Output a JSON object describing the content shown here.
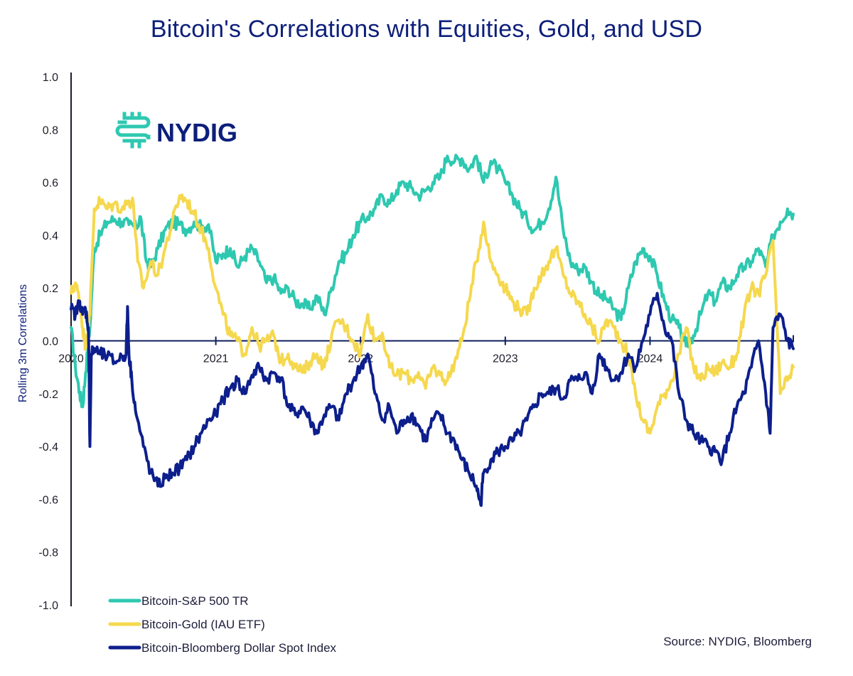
{
  "chart_data": {
    "type": "line",
    "title": "Bitcoin's Correlations with Equities, Gold, and USD",
    "xlabel": "",
    "ylabel": "Rolling 3m Correlations",
    "ylim": [
      -1.0,
      1.0
    ],
    "xlim": [
      2020.0,
      2024.99
    ],
    "yticks": [
      "1.0",
      "0.8",
      "0.6",
      "0.4",
      "0.2",
      "0.0",
      "-0.2",
      "-0.4",
      "-0.6",
      "-0.8",
      "-1.0"
    ],
    "ytick_values": [
      1.0,
      0.8,
      0.6,
      0.4,
      0.2,
      0.0,
      -0.2,
      -0.4,
      -0.6,
      -0.8,
      -1.0
    ],
    "xticks": [
      "2020",
      "2021",
      "2022",
      "2023",
      "2024"
    ],
    "xtick_values": [
      2020,
      2021,
      2022,
      2023,
      2024
    ],
    "grid": false,
    "legend_position": "bottom-left",
    "source": "Source: NYDIG, Bloomberg",
    "logo": "NYDIG",
    "series": [
      {
        "name": "Bitcoin-S&P 500 TR",
        "color": "#2ec8b0",
        "x": [
          2020.0,
          2020.03,
          2020.06,
          2020.08,
          2020.1,
          2020.13,
          2020.16,
          2020.2,
          2020.25,
          2020.3,
          2020.35,
          2020.4,
          2020.45,
          2020.48,
          2020.52,
          2020.55,
          2020.6,
          2020.65,
          2020.7,
          2020.75,
          2020.8,
          2020.85,
          2020.9,
          2020.95,
          2021.0,
          2021.05,
          2021.1,
          2021.15,
          2021.2,
          2021.25,
          2021.3,
          2021.35,
          2021.4,
          2021.45,
          2021.5,
          2021.55,
          2021.6,
          2021.65,
          2021.7,
          2021.75,
          2021.8,
          2021.85,
          2021.9,
          2021.95,
          2022.0,
          2022.05,
          2022.1,
          2022.15,
          2022.2,
          2022.25,
          2022.3,
          2022.35,
          2022.4,
          2022.45,
          2022.5,
          2022.55,
          2022.6,
          2022.65,
          2022.7,
          2022.75,
          2022.8,
          2022.85,
          2022.9,
          2022.95,
          2023.0,
          2023.05,
          2023.1,
          2023.15,
          2023.2,
          2023.25,
          2023.3,
          2023.35,
          2023.4,
          2023.45,
          2023.5,
          2023.55,
          2023.6,
          2023.65,
          2023.7,
          2023.75,
          2023.8,
          2023.85,
          2023.9,
          2023.95,
          2024.0,
          2024.05,
          2024.1,
          2024.15,
          2024.2,
          2024.25,
          2024.3,
          2024.35,
          2024.4,
          2024.45,
          2024.5,
          2024.55,
          2024.6,
          2024.65,
          2024.7,
          2024.75,
          2024.8,
          2024.85,
          2024.9,
          2024.95,
          2024.99
        ],
        "values": [
          0.05,
          -0.1,
          -0.2,
          -0.25,
          -0.12,
          0.05,
          0.35,
          0.4,
          0.45,
          0.46,
          0.45,
          0.44,
          0.43,
          0.47,
          0.3,
          0.28,
          0.35,
          0.42,
          0.45,
          0.44,
          0.42,
          0.45,
          0.43,
          0.44,
          0.3,
          0.33,
          0.35,
          0.28,
          0.32,
          0.35,
          0.3,
          0.22,
          0.24,
          0.18,
          0.2,
          0.15,
          0.14,
          0.12,
          0.17,
          0.1,
          0.2,
          0.3,
          0.33,
          0.4,
          0.45,
          0.47,
          0.5,
          0.55,
          0.52,
          0.57,
          0.6,
          0.58,
          0.55,
          0.57,
          0.6,
          0.62,
          0.7,
          0.68,
          0.69,
          0.65,
          0.7,
          0.6,
          0.68,
          0.65,
          0.6,
          0.55,
          0.5,
          0.46,
          0.42,
          0.45,
          0.5,
          0.62,
          0.42,
          0.3,
          0.27,
          0.28,
          0.22,
          0.17,
          0.16,
          0.12,
          0.08,
          0.2,
          0.3,
          0.35,
          0.32,
          0.25,
          0.15,
          0.08,
          0.05,
          -0.02,
          0.02,
          0.1,
          0.18,
          0.15,
          0.22,
          0.2,
          0.25,
          0.28,
          0.3,
          0.35,
          0.28,
          0.4,
          0.45,
          0.5,
          0.48
        ],
        "values_tail_note": ""
      },
      {
        "name": "Bitcoin-Gold (IAU ETF)",
        "color": "#f5d84e",
        "x": [
          2020.0,
          2020.03,
          2020.06,
          2020.08,
          2020.1,
          2020.13,
          2020.16,
          2020.2,
          2020.25,
          2020.3,
          2020.35,
          2020.4,
          2020.43,
          2020.46,
          2020.5,
          2020.55,
          2020.6,
          2020.65,
          2020.7,
          2020.75,
          2020.8,
          2020.85,
          2020.9,
          2020.95,
          2021.0,
          2021.05,
          2021.1,
          2021.15,
          2021.2,
          2021.25,
          2021.3,
          2021.35,
          2021.4,
          2021.45,
          2021.5,
          2021.55,
          2021.6,
          2021.65,
          2021.7,
          2021.75,
          2021.8,
          2021.85,
          2021.9,
          2021.95,
          2022.0,
          2022.05,
          2022.1,
          2022.15,
          2022.2,
          2022.25,
          2022.3,
          2022.35,
          2022.4,
          2022.45,
          2022.5,
          2022.55,
          2022.6,
          2022.65,
          2022.7,
          2022.75,
          2022.8,
          2022.85,
          2022.9,
          2022.95,
          2023.0,
          2023.05,
          2023.1,
          2023.15,
          2023.2,
          2023.25,
          2023.3,
          2023.35,
          2023.4,
          2023.45,
          2023.5,
          2023.55,
          2023.6,
          2023.65,
          2023.7,
          2023.75,
          2023.8,
          2023.85,
          2023.9,
          2023.95,
          2024.0,
          2024.05,
          2024.1,
          2024.15,
          2024.2,
          2024.25,
          2024.3,
          2024.35,
          2024.4,
          2024.45,
          2024.5,
          2024.55,
          2024.6,
          2024.65,
          2024.7,
          2024.75,
          2024.8,
          2024.85,
          2024.9,
          2024.95,
          2024.99
        ],
        "values": [
          0.18,
          0.22,
          0.15,
          0.05,
          -0.02,
          0.1,
          0.5,
          0.53,
          0.5,
          0.52,
          0.5,
          0.53,
          0.52,
          0.3,
          0.2,
          0.3,
          0.25,
          0.35,
          0.45,
          0.55,
          0.53,
          0.48,
          0.42,
          0.35,
          0.2,
          0.1,
          0.02,
          0.0,
          -0.05,
          0.05,
          -0.02,
          0.0,
          0.02,
          -0.08,
          -0.05,
          -0.1,
          -0.12,
          -0.08,
          -0.05,
          -0.1,
          0.02,
          0.08,
          0.05,
          0.0,
          -0.05,
          0.1,
          0.0,
          0.03,
          -0.1,
          -0.13,
          -0.12,
          -0.15,
          -0.12,
          -0.18,
          -0.1,
          -0.13,
          -0.15,
          -0.08,
          0.0,
          0.15,
          0.3,
          0.45,
          0.3,
          0.25,
          0.2,
          0.15,
          0.12,
          0.1,
          0.2,
          0.25,
          0.3,
          0.35,
          0.25,
          0.18,
          0.15,
          0.1,
          0.05,
          0.0,
          0.08,
          0.05,
          0.0,
          -0.05,
          -0.2,
          -0.3,
          -0.35,
          -0.25,
          -0.2,
          -0.15,
          -0.05,
          0.05,
          -0.1,
          -0.15,
          -0.1,
          -0.12,
          -0.08,
          -0.1,
          -0.05,
          0.1,
          0.2,
          0.18,
          0.25,
          0.38,
          -0.2,
          -0.15,
          -0.1
        ]
      },
      {
        "name": "Bitcoin-Bloomberg Dollar Spot Index",
        "color": "#0d1f8c",
        "x": [
          2020.0,
          2020.03,
          2020.06,
          2020.08,
          2020.1,
          2020.12,
          2020.13,
          2020.14,
          2020.16,
          2020.2,
          2020.25,
          2020.3,
          2020.35,
          2020.38,
          2020.39,
          2020.4,
          2020.42,
          2020.45,
          2020.5,
          2020.55,
          2020.6,
          2020.65,
          2020.7,
          2020.75,
          2020.8,
          2020.85,
          2020.9,
          2020.95,
          2021.0,
          2021.05,
          2021.1,
          2021.15,
          2021.2,
          2021.25,
          2021.3,
          2021.35,
          2021.4,
          2021.45,
          2021.5,
          2021.55,
          2021.6,
          2021.65,
          2021.7,
          2021.75,
          2021.8,
          2021.85,
          2021.9,
          2021.95,
          2022.0,
          2022.05,
          2022.1,
          2022.15,
          2022.2,
          2022.25,
          2022.3,
          2022.35,
          2022.4,
          2022.45,
          2022.5,
          2022.55,
          2022.6,
          2022.65,
          2022.7,
          2022.75,
          2022.8,
          2022.83,
          2022.85,
          2022.9,
          2022.95,
          2023.0,
          2023.05,
          2023.1,
          2023.15,
          2023.2,
          2023.25,
          2023.3,
          2023.35,
          2023.4,
          2023.45,
          2023.5,
          2023.55,
          2023.6,
          2023.65,
          2023.7,
          2023.75,
          2023.8,
          2023.85,
          2023.9,
          2023.95,
          2024.0,
          2024.05,
          2024.1,
          2024.15,
          2024.2,
          2024.25,
          2024.3,
          2024.35,
          2024.4,
          2024.45,
          2024.5,
          2024.55,
          2024.6,
          2024.65,
          2024.7,
          2024.75,
          2024.8,
          2024.83,
          2024.85,
          2024.9,
          2024.95,
          2024.99
        ],
        "values": [
          0.12,
          0.1,
          0.15,
          0.1,
          0.12,
          0.05,
          -0.4,
          -0.05,
          -0.03,
          -0.05,
          -0.06,
          -0.08,
          -0.06,
          -0.05,
          0.13,
          -0.05,
          -0.15,
          -0.28,
          -0.4,
          -0.5,
          -0.55,
          -0.52,
          -0.5,
          -0.48,
          -0.45,
          -0.4,
          -0.35,
          -0.3,
          -0.28,
          -0.22,
          -0.18,
          -0.15,
          -0.2,
          -0.13,
          -0.1,
          -0.15,
          -0.12,
          -0.14,
          -0.25,
          -0.28,
          -0.25,
          -0.3,
          -0.35,
          -0.28,
          -0.25,
          -0.3,
          -0.2,
          -0.15,
          -0.1,
          -0.05,
          -0.2,
          -0.3,
          -0.25,
          -0.35,
          -0.3,
          -0.28,
          -0.32,
          -0.38,
          -0.3,
          -0.28,
          -0.35,
          -0.38,
          -0.45,
          -0.5,
          -0.55,
          -0.62,
          -0.5,
          -0.45,
          -0.42,
          -0.4,
          -0.38,
          -0.35,
          -0.3,
          -0.25,
          -0.2,
          -0.2,
          -0.18,
          -0.22,
          -0.15,
          -0.15,
          -0.12,
          -0.2,
          -0.05,
          -0.1,
          -0.15,
          -0.12,
          -0.05,
          -0.1,
          0.0,
          0.1,
          0.18,
          0.05,
          0.0,
          -0.2,
          -0.3,
          -0.35,
          -0.38,
          -0.4,
          -0.42,
          -0.45,
          -0.35,
          -0.25,
          -0.2,
          -0.1,
          0.0,
          -0.2,
          -0.35,
          0.05,
          0.1,
          0.0,
          -0.03
        ]
      }
    ]
  }
}
